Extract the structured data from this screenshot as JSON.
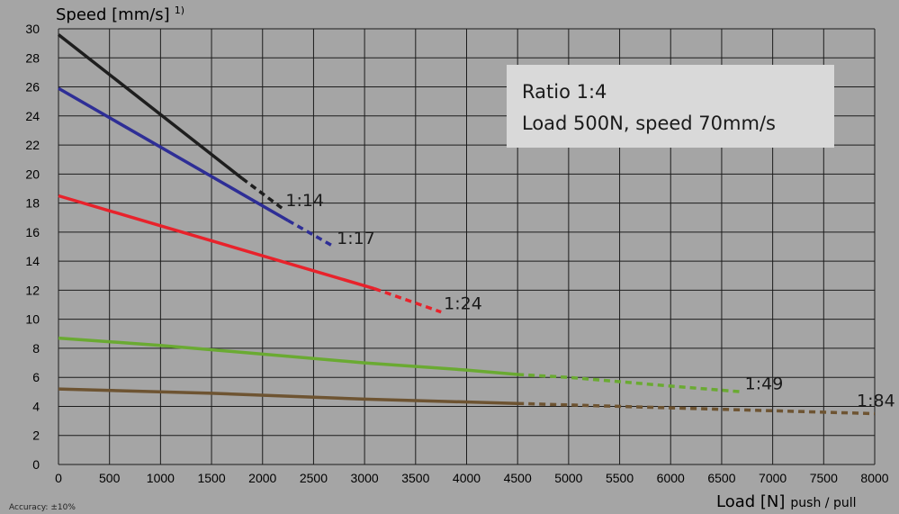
{
  "chart_data": {
    "type": "line",
    "ylabel": "Speed [mm/s]",
    "ylabel_sup": "1)",
    "xlabel_main": "Load [N]",
    "xlabel_suffix": "push / pull",
    "note": "Accuracy: ±10%",
    "xlim": [
      0,
      8000
    ],
    "ylim": [
      0,
      30
    ],
    "x_ticks": [
      0,
      500,
      1000,
      1500,
      2000,
      2500,
      3000,
      3500,
      4000,
      4500,
      5000,
      5500,
      6000,
      6500,
      7000,
      7500,
      8000
    ],
    "y_ticks": [
      0,
      2,
      4,
      6,
      8,
      10,
      12,
      14,
      16,
      18,
      20,
      22,
      24,
      26,
      28,
      30
    ],
    "grid": true,
    "info_box": {
      "line1": "Ratio 1:4",
      "line2": "Load 500N, speed 70mm/s"
    },
    "series": [
      {
        "name": "1:14",
        "color": "#1e1e1e",
        "solid": [
          [
            0,
            29.6
          ],
          [
            1800,
            19.7
          ]
        ],
        "dashed": [
          [
            1800,
            19.7
          ],
          [
            2200,
            17.6
          ]
        ]
      },
      {
        "name": "1:17",
        "color": "#2e2e96",
        "solid": [
          [
            0,
            25.9
          ],
          [
            2250,
            16.8
          ]
        ],
        "dashed": [
          [
            2250,
            16.8
          ],
          [
            2700,
            15.0
          ]
        ]
      },
      {
        "name": "1:24",
        "color": "#e8222b",
        "solid": [
          [
            0,
            18.5
          ],
          [
            3100,
            12.1
          ]
        ],
        "dashed": [
          [
            3100,
            12.1
          ],
          [
            3750,
            10.5
          ]
        ]
      },
      {
        "name": "1:49",
        "color": "#6aaa32",
        "solid": [
          [
            0,
            8.7
          ],
          [
            1000,
            8.2
          ],
          [
            2000,
            7.6
          ],
          [
            3000,
            7.0
          ],
          [
            4000,
            6.5
          ],
          [
            4500,
            6.2
          ]
        ],
        "dashed": [
          [
            4500,
            6.2
          ],
          [
            5000,
            6.0
          ],
          [
            5500,
            5.7
          ],
          [
            6000,
            5.4
          ],
          [
            6700,
            5.0
          ]
        ]
      },
      {
        "name": "1:84",
        "color": "#6e5432",
        "solid": [
          [
            0,
            5.2
          ],
          [
            1500,
            4.9
          ],
          [
            3000,
            4.5
          ],
          [
            4500,
            4.2
          ]
        ],
        "dashed": [
          [
            4500,
            4.2
          ],
          [
            6000,
            3.9
          ],
          [
            8000,
            3.5
          ]
        ]
      }
    ]
  }
}
